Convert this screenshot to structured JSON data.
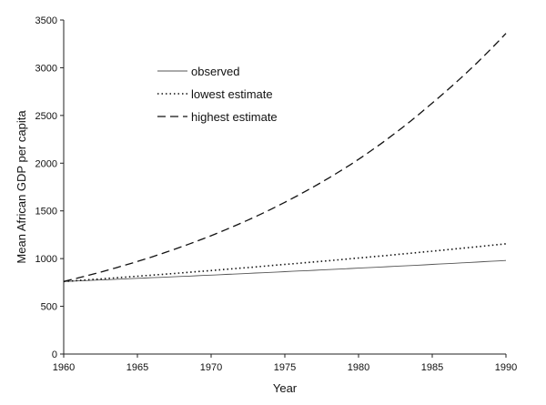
{
  "chart_data": {
    "type": "line",
    "title": "",
    "xlabel": "Year",
    "ylabel": "Mean African GDP per capita",
    "xlim": [
      1960,
      1990
    ],
    "ylim": [
      0,
      3500
    ],
    "xticks": [
      1960,
      1965,
      1970,
      1975,
      1980,
      1985,
      1990
    ],
    "yticks": [
      0,
      500,
      1000,
      1500,
      2000,
      2500,
      3000,
      3500
    ],
    "grid": false,
    "legend_position": "top-left-inside",
    "x": [
      1960,
      1965,
      1970,
      1975,
      1980,
      1985,
      1990
    ],
    "series": [
      {
        "name": "observed",
        "style": "solid",
        "color": "#555555",
        "values": [
          760,
          793,
          827,
          863,
          900,
          939,
          980
        ]
      },
      {
        "name": "lowest estimate",
        "style": "dotted",
        "color": "#111111",
        "values": [
          760,
          815,
          875,
          939,
          1006,
          1078,
          1155
        ]
      },
      {
        "name": "highest estimate",
        "style": "dashed",
        "color": "#111111",
        "values": [
          760,
          970,
          1240,
          1590,
          2040,
          2630,
          3360
        ]
      }
    ]
  }
}
